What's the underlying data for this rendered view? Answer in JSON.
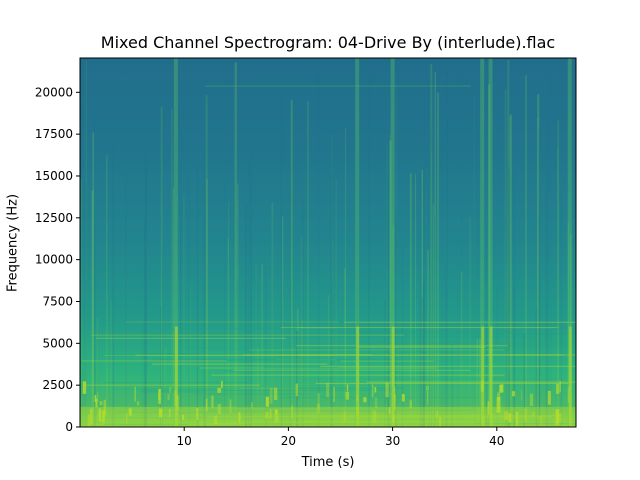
{
  "chart_data": {
    "type": "heatmap",
    "title": "Mixed Channel Spectrogram: 04-Drive By (interlude).flac",
    "xlabel": "Time (s)",
    "ylabel": "Frequency (Hz)",
    "xlim": [
      0,
      47.6
    ],
    "ylim": [
      0,
      22050
    ],
    "x_ticks": [
      10,
      20,
      30,
      40
    ],
    "y_ticks": [
      0,
      2500,
      5000,
      7500,
      10000,
      12500,
      15000,
      17500,
      20000
    ],
    "colormap": "viridis",
    "colors": {
      "low": "#1e6a8c",
      "mid": "#21918c",
      "high": "#5ec962",
      "peak": "#bddf26"
    },
    "bright_vertical_events_s": [
      9.2,
      26.6,
      30.0,
      38.6,
      39.4,
      47.0
    ],
    "low_frequency_energy_band_hz": [
      0,
      3000
    ],
    "grid": false,
    "legend": "none"
  }
}
